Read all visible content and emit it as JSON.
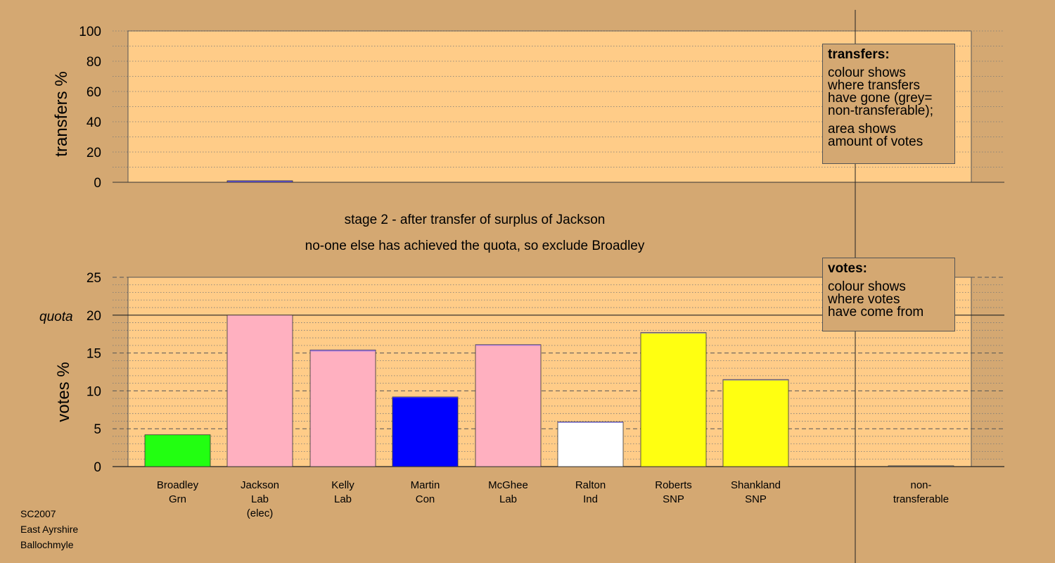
{
  "colors": {
    "background": "#d4a872",
    "plot_fill": "#ffcc88",
    "Grn": "#22ff11",
    "Lab": "#ffb0c0",
    "Con": "#0000ff",
    "Ind": "#ffffff",
    "SNP": "#ffff11",
    "transfer_line": "#6655ee"
  },
  "subtitle": {
    "line1": "stage 2 - after transfer of surplus of Jackson",
    "line2": "no-one else has achieved the quota, so exclude Broadley"
  },
  "legend_transfers": {
    "title": "transfers:",
    "lines": [
      "colour shows",
      "where transfers",
      "have gone (grey=",
      "non-transferable);",
      "area shows",
      "amount of votes"
    ]
  },
  "legend_votes": {
    "title": "votes:",
    "lines": [
      "colour shows",
      "where votes",
      "have come from"
    ]
  },
  "footer": {
    "line1": "SC2007",
    "line2": "East Ayrshire",
    "line3": "Ballochmyle"
  },
  "chart_data": [
    {
      "type": "bar",
      "ylabel": "transfers %",
      "ylim": [
        0,
        100
      ],
      "yticks": [
        0,
        20,
        40,
        60,
        80,
        100
      ],
      "grid": true,
      "categories": [
        "Broadley Grn",
        "Jackson Lab (elec)",
        "Kelly Lab",
        "Martin Con",
        "McGhee Lab",
        "Ralton Ind",
        "Roberts SNP",
        "Shankland SNP",
        "non-transferable"
      ],
      "values": [
        0,
        1,
        0,
        0,
        0,
        0,
        0,
        0,
        0
      ]
    },
    {
      "type": "bar",
      "ylabel": "votes %",
      "ylim": [
        0,
        25
      ],
      "yticks": [
        0,
        5,
        10,
        15,
        20,
        25
      ],
      "grid": true,
      "quota": {
        "label": "quota",
        "value": 20
      },
      "categories": [
        {
          "line1": "Broadley",
          "line2": "Grn",
          "line3": ""
        },
        {
          "line1": "Jackson",
          "line2": "Lab",
          "line3": "(elec)"
        },
        {
          "line1": "Kelly",
          "line2": "Lab",
          "line3": ""
        },
        {
          "line1": "Martin",
          "line2": "Con",
          "line3": ""
        },
        {
          "line1": "McGhee",
          "line2": "Lab",
          "line3": ""
        },
        {
          "line1": "Ralton",
          "line2": "Ind",
          "line3": ""
        },
        {
          "line1": "Roberts",
          "line2": "SNP",
          "line3": ""
        },
        {
          "line1": "Shankland",
          "line2": "SNP",
          "line3": ""
        },
        {
          "line1": "non-",
          "line2": "transferable",
          "line3": ""
        }
      ],
      "values": [
        4.2,
        20.0,
        15.4,
        9.2,
        16.1,
        5.9,
        17.7,
        11.5,
        0.1
      ],
      "transfer_in": [
        0,
        0,
        0.2,
        0.1,
        0.1,
        0.05,
        0.1,
        0.05,
        0.1
      ],
      "party": [
        "Grn",
        "Lab",
        "Lab",
        "Con",
        "Lab",
        "Ind",
        "SNP",
        "SNP",
        "none"
      ]
    }
  ]
}
